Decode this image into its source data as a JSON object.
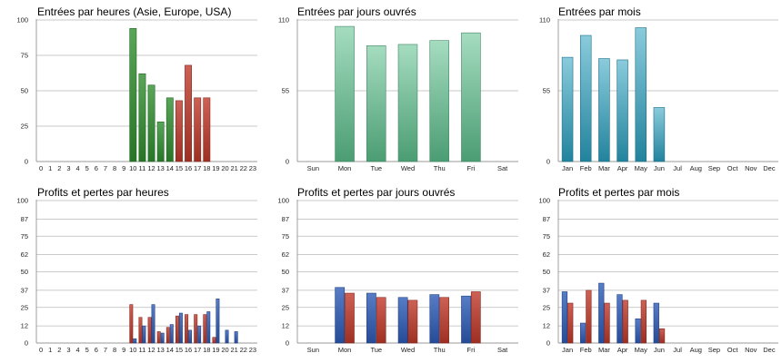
{
  "chart_data": [
    {
      "id": "entries_hour",
      "type": "bar",
      "title": "Entrées par heures (Asie, Europe, USA)",
      "yticks": [
        0,
        25,
        50,
        75,
        100
      ],
      "ylim": [
        0,
        100
      ],
      "categories": [
        "0",
        "1",
        "2",
        "3",
        "4",
        "5",
        "6",
        "7",
        "8",
        "9",
        "10",
        "11",
        "12",
        "13",
        "14",
        "15",
        "16",
        "17",
        "18",
        "19",
        "20",
        "21",
        "22",
        "23"
      ],
      "series": [
        {
          "values": [
            0,
            0,
            0,
            0,
            0,
            0,
            0,
            0,
            0,
            0,
            94,
            62,
            54,
            28,
            45,
            43,
            68,
            45,
            45,
            0,
            0,
            0,
            0,
            0
          ],
          "bar_colors": [
            "#2f8f2f",
            "#2f8f2f",
            "#2f8f2f",
            "#2f8f2f",
            "#2f8f2f",
            "#2f8f2f",
            "#2f8f2f",
            "#2f8f2f",
            "#2f8f2f",
            "#2f8f2f",
            "#2f8f2f",
            "#2f8f2f",
            "#2f8f2f",
            "#2f8f2f",
            "#2f8f2f",
            "#c0392b",
            "#c0392b",
            "#c0392b",
            "#c0392b",
            "#c0392b",
            "#c0392b",
            "#c0392b",
            "#c0392b",
            "#c0392b"
          ]
        }
      ],
      "grid": true
    },
    {
      "id": "entries_weekday",
      "type": "bar",
      "title": "Entrées par jours ouvrés",
      "yticks": [
        0,
        55,
        110
      ],
      "ylim": [
        0,
        110
      ],
      "categories": [
        "Sun",
        "Mon",
        "Tue",
        "Wed",
        "Thu",
        "Fri",
        "Sat"
      ],
      "series": [
        {
          "values": [
            0,
            105,
            90,
            91,
            94,
            100,
            0
          ],
          "color": "#5cbf8c"
        }
      ],
      "grid": true
    },
    {
      "id": "entries_month",
      "type": "bar",
      "title": "Entrées par mois",
      "yticks": [
        0,
        55,
        110
      ],
      "ylim": [
        0,
        110
      ],
      "categories": [
        "Jan",
        "Feb",
        "Mar",
        "Apr",
        "May",
        "Jun",
        "Jul",
        "Aug",
        "Sep",
        "Oct",
        "Nov",
        "Dec"
      ],
      "series": [
        {
          "values": [
            81,
            98,
            80,
            79,
            104,
            42,
            0,
            0,
            0,
            0,
            0,
            0
          ],
          "color": "#2aa0bf"
        }
      ],
      "grid": true
    },
    {
      "id": "pl_hour",
      "type": "bar",
      "title": "Profits et pertes par heures",
      "yticks": [
        0,
        12,
        25,
        37,
        50,
        62,
        75,
        87,
        100
      ],
      "ylim": [
        0,
        100
      ],
      "categories": [
        "0",
        "1",
        "2",
        "3",
        "4",
        "5",
        "6",
        "7",
        "8",
        "9",
        "10",
        "11",
        "12",
        "13",
        "14",
        "15",
        "16",
        "17",
        "18",
        "19",
        "20",
        "21",
        "22",
        "23"
      ],
      "series": [
        {
          "values": [
            0,
            0,
            0,
            0,
            0,
            0,
            0,
            0,
            0,
            0,
            27,
            18,
            18,
            8,
            11,
            19,
            20,
            20,
            20,
            4,
            0,
            0,
            0,
            0
          ],
          "color": "#c0392b"
        },
        {
          "values": [
            0,
            0,
            0,
            0,
            0,
            0,
            0,
            0,
            0,
            0,
            3,
            12,
            27,
            7,
            13,
            21,
            9,
            12,
            22,
            31,
            9,
            8,
            0,
            0
          ],
          "color": "#2e5cb8"
        }
      ],
      "grid": true
    },
    {
      "id": "pl_weekday",
      "type": "bar",
      "title": "Profits et pertes par jours ouvrés",
      "yticks": [
        0,
        12,
        25,
        37,
        50,
        62,
        75,
        87,
        100
      ],
      "ylim": [
        0,
        100
      ],
      "categories": [
        "Sun",
        "Mon",
        "Tue",
        "Wed",
        "Thu",
        "Fri",
        "Sat"
      ],
      "series": [
        {
          "values": [
            0,
            39,
            35,
            32,
            34,
            33,
            0
          ],
          "color": "#2e5cb8"
        },
        {
          "values": [
            0,
            35,
            32,
            30,
            32,
            36,
            0
          ],
          "color": "#c0392b"
        }
      ],
      "grid": true
    },
    {
      "id": "pl_month",
      "type": "bar",
      "title": "Profits et pertes par mois",
      "yticks": [
        0,
        12,
        25,
        37,
        50,
        62,
        75,
        87,
        100
      ],
      "ylim": [
        0,
        100
      ],
      "categories": [
        "Jan",
        "Feb",
        "Mar",
        "Apr",
        "May",
        "Jun",
        "Jul",
        "Aug",
        "Sep",
        "Oct",
        "Nov",
        "Dec"
      ],
      "series": [
        {
          "values": [
            36,
            14,
            42,
            34,
            17,
            28,
            0,
            0,
            0,
            0,
            0,
            0
          ],
          "color": "#2e5cb8"
        },
        {
          "values": [
            28,
            37,
            28,
            30,
            30,
            10,
            0,
            0,
            0,
            0,
            0,
            0
          ],
          "color": "#c0392b"
        }
      ],
      "grid": true
    }
  ]
}
